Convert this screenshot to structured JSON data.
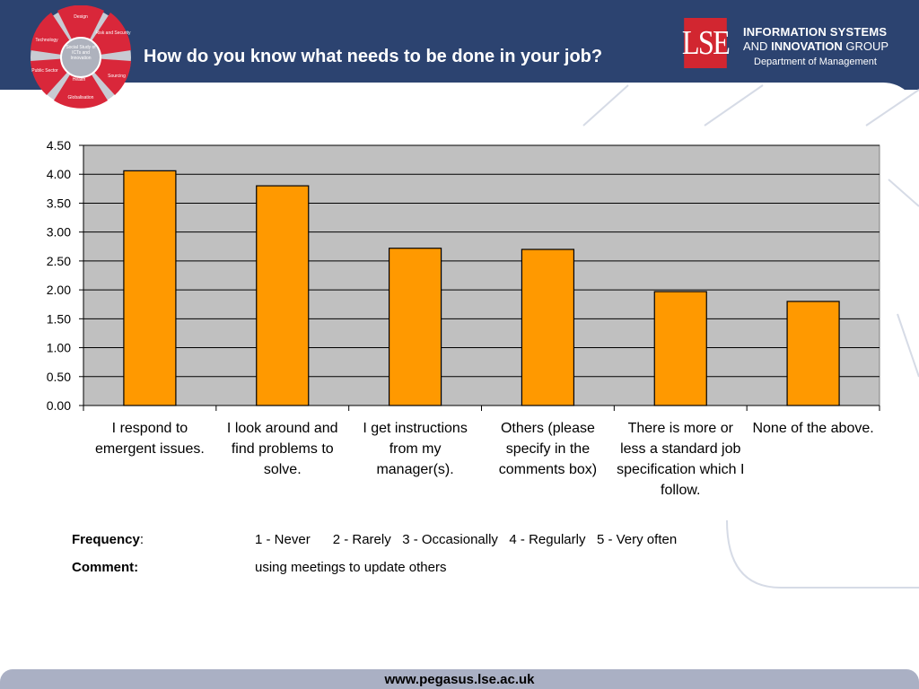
{
  "slide": {
    "title": "How do you know what needs to be done in your job?"
  },
  "logo_wheel": {
    "center_text": "Social Study of ICTs and Innovation",
    "segments": [
      "Design",
      "Risk and Security",
      "Sourcing",
      "Globalisation",
      "Health",
      "Public Sector",
      "Technology"
    ]
  },
  "lse": {
    "mark": "LSE",
    "line1": "INFORMATION SYSTEMS",
    "line2_prefix": "AND",
    "line2_bold": "INNOVATION",
    "line2_suffix": "GROUP",
    "line3": "Department of Management"
  },
  "legend": {
    "frequency_key": "Frequency",
    "frequency_colon": ":",
    "frequency_value": "1 - Never      2 - Rarely   3 - Occasionally   4 - Regularly   5 - Very often",
    "comment_key": "Comment:",
    "comment_value": "using meetings to update others"
  },
  "footer": {
    "url": "www.pegasus.lse.ac.uk"
  },
  "colors": {
    "header_bg": "#2c4370",
    "bar_fill": "#ff9900",
    "plot_bg": "#c0c0c0",
    "lse_red": "#d22630",
    "wheel_red": "#d9273a"
  },
  "chart_data": {
    "type": "bar",
    "categories": [
      "I respond to emergent issues.",
      "I look around and find problems to solve.",
      "I get instructions from my manager(s).",
      "Others (please specify in the comments box)",
      "There is more or less a standard job specification which I follow.",
      "None of the above."
    ],
    "values": [
      4.06,
      3.8,
      2.72,
      2.7,
      1.97,
      1.8
    ],
    "ylim": [
      0,
      4.5
    ],
    "yticks": [
      "0.00",
      "0.50",
      "1.00",
      "1.50",
      "2.00",
      "2.50",
      "3.00",
      "3.50",
      "4.00",
      "4.50"
    ],
    "grid": true,
    "legend": "none"
  }
}
